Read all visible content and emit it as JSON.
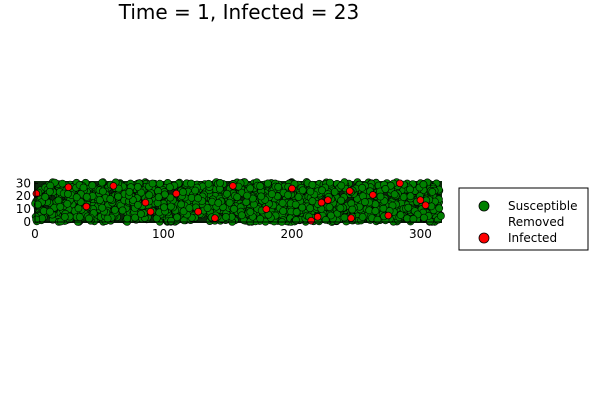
{
  "chart_data": {
    "type": "scatter",
    "title": "Time = 1, Infected = 23",
    "xlabel": "",
    "ylabel": "",
    "xlim": [
      0,
      316
    ],
    "ylim": [
      0,
      31
    ],
    "xticks": [
      0,
      100,
      200,
      300
    ],
    "yticks": [
      0,
      10,
      20,
      30
    ],
    "grid": false,
    "aspect": "equal",
    "legend_position": "right",
    "series": [
      {
        "name": "Susceptible",
        "color": "#008000",
        "marker": "circle",
        "description": "dense uniform fill of green points over x 0-316, y 0-31"
      },
      {
        "name": "Removed",
        "color": "#ffffff",
        "marker": "none",
        "points": []
      },
      {
        "name": "Infected",
        "color": "#ff0000",
        "marker": "circle",
        "points": [
          [
            1,
            22
          ],
          [
            26,
            27
          ],
          [
            61,
            28
          ],
          [
            86,
            15
          ],
          [
            90,
            8
          ],
          [
            127,
            8
          ],
          [
            154,
            28
          ],
          [
            215,
            1
          ],
          [
            220,
            4
          ],
          [
            223,
            15
          ],
          [
            228,
            17
          ],
          [
            245,
            24
          ],
          [
            246,
            3
          ],
          [
            263,
            21
          ],
          [
            275,
            5
          ],
          [
            284,
            30
          ],
          [
            300,
            17
          ],
          [
            304,
            13
          ],
          [
            40,
            12
          ],
          [
            110,
            22
          ],
          [
            180,
            10
          ],
          [
            200,
            26
          ],
          [
            140,
            3
          ]
        ]
      }
    ]
  }
}
